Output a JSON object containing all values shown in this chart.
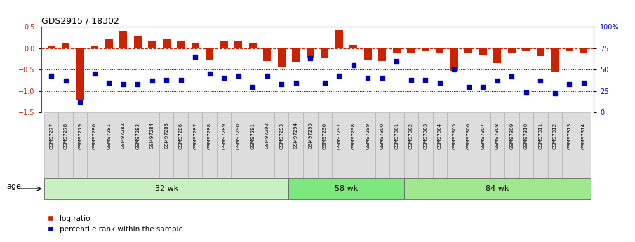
{
  "title": "GDS2915 / 18302",
  "samples": [
    "GSM97277",
    "GSM97278",
    "GSM97279",
    "GSM97280",
    "GSM97281",
    "GSM97282",
    "GSM97283",
    "GSM97284",
    "GSM97285",
    "GSM97286",
    "GSM97287",
    "GSM97288",
    "GSM97289",
    "GSM97290",
    "GSM97291",
    "GSM97292",
    "GSM97293",
    "GSM97294",
    "GSM97295",
    "GSM97296",
    "GSM97297",
    "GSM97298",
    "GSM97299",
    "GSM97300",
    "GSM97301",
    "GSM97302",
    "GSM97303",
    "GSM97304",
    "GSM97305",
    "GSM97306",
    "GSM97307",
    "GSM97308",
    "GSM97309",
    "GSM97310",
    "GSM97311",
    "GSM97312",
    "GSM97313",
    "GSM97314"
  ],
  "log_ratio": [
    0.05,
    0.1,
    -1.2,
    0.05,
    0.22,
    0.4,
    0.28,
    0.17,
    0.21,
    0.15,
    0.12,
    -0.27,
    0.17,
    0.18,
    0.12,
    -0.3,
    -0.45,
    -0.32,
    -0.22,
    -0.22,
    0.42,
    0.07,
    -0.28,
    -0.3,
    -0.1,
    -0.1,
    -0.05,
    -0.12,
    -0.53,
    -0.12,
    -0.15,
    -0.35,
    -0.12,
    -0.05,
    -0.18,
    -0.55,
    -0.08,
    -0.1
  ],
  "percentile": [
    43,
    37,
    13,
    45,
    35,
    33,
    33,
    37,
    38,
    38,
    65,
    45,
    40,
    43,
    30,
    43,
    33,
    35,
    63,
    35,
    43,
    55,
    40,
    40,
    60,
    38,
    38,
    35,
    50,
    30,
    30,
    37,
    42,
    23,
    37,
    22,
    33,
    35
  ],
  "groups": [
    {
      "label": "32 wk",
      "start": 0,
      "end": 17
    },
    {
      "label": "58 wk",
      "start": 17,
      "end": 25
    },
    {
      "label": "84 wk",
      "start": 25,
      "end": 38
    }
  ],
  "group_colors": [
    "#c8f0c0",
    "#7de87d",
    "#a0e890"
  ],
  "ylim": [
    -1.5,
    0.5
  ],
  "yticks_left": [
    -1.5,
    -1.0,
    -0.5,
    0.0,
    0.5
  ],
  "yticks_right": [
    0,
    25,
    50,
    75,
    100
  ],
  "right_tick_labels": [
    "0",
    "25",
    "50",
    "75",
    "100%"
  ],
  "bar_color": "#CC2200",
  "dot_color": "#0000BB",
  "hline_color": "#CC2200",
  "dotline_levels": [
    -0.5,
    -1.0
  ],
  "background_color": "#ffffff"
}
